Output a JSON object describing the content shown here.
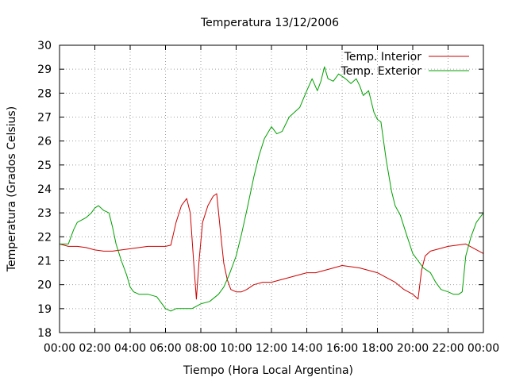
{
  "chart_data": {
    "type": "line",
    "title": "Temperatura 13/12/2006",
    "xlabel": "Tiempo (Hora Local Argentina)",
    "ylabel": "Temperatura (Grados Celsius)",
    "xlim": [
      0,
      24
    ],
    "ylim": [
      18,
      30
    ],
    "x_tick_labels": [
      "00:00",
      "02:00",
      "04:00",
      "06:00",
      "08:00",
      "10:00",
      "12:00",
      "14:00",
      "16:00",
      "18:00",
      "20:00",
      "22:00",
      "00:00"
    ],
    "y_tick_labels": [
      "18",
      "19",
      "20",
      "21",
      "22",
      "23",
      "24",
      "25",
      "26",
      "27",
      "28",
      "29",
      "30"
    ],
    "grid": true,
    "legend_position": "top-right",
    "series": [
      {
        "name": "Temp. Interior",
        "color": "#cc0000",
        "x": [
          0,
          0.5,
          1,
          1.5,
          2,
          2.5,
          3,
          3.5,
          4,
          4.5,
          5,
          5.5,
          6,
          6.3,
          6.6,
          6.9,
          7.2,
          7.4,
          7.6,
          7.75,
          7.9,
          8.1,
          8.4,
          8.7,
          8.9,
          9.1,
          9.3,
          9.5,
          9.7,
          10,
          10.3,
          10.6,
          11,
          11.5,
          12,
          12.5,
          13,
          13.5,
          14,
          14.5,
          15,
          15.5,
          16,
          16.5,
          17,
          17.5,
          18,
          18.5,
          19,
          19.5,
          20,
          20.3,
          20.5,
          20.7,
          21,
          21.5,
          22,
          22.5,
          23,
          23.5,
          24
        ],
        "y": [
          21.7,
          21.6,
          21.6,
          21.55,
          21.45,
          21.4,
          21.4,
          21.45,
          21.5,
          21.55,
          21.6,
          21.6,
          21.6,
          21.65,
          22.6,
          23.3,
          23.6,
          23.0,
          20.9,
          19.4,
          21.0,
          22.6,
          23.3,
          23.7,
          23.8,
          22.3,
          20.9,
          20.2,
          19.8,
          19.7,
          19.7,
          19.8,
          20.0,
          20.1,
          20.1,
          20.2,
          20.3,
          20.4,
          20.5,
          20.5,
          20.6,
          20.7,
          20.8,
          20.75,
          20.7,
          20.6,
          20.5,
          20.3,
          20.1,
          19.8,
          19.6,
          19.4,
          20.6,
          21.2,
          21.4,
          21.5,
          21.6,
          21.65,
          21.7,
          21.5,
          21.3
        ]
      },
      {
        "name": "Temp. Exterior",
        "color": "#00a000",
        "x": [
          0,
          0.5,
          0.8,
          1,
          1.5,
          1.8,
          2,
          2.2,
          2.5,
          2.8,
          3,
          3.2,
          3.5,
          3.8,
          4,
          4.2,
          4.5,
          5,
          5.5,
          5.8,
          6,
          6.3,
          6.6,
          7,
          7.5,
          8,
          8.5,
          9,
          9.3,
          9.6,
          10,
          10.3,
          10.6,
          11,
          11.3,
          11.6,
          12,
          12.3,
          12.6,
          13,
          13.3,
          13.6,
          14,
          14.3,
          14.6,
          14.8,
          15,
          15.2,
          15.5,
          15.8,
          16,
          16.2,
          16.5,
          16.8,
          17,
          17.2,
          17.5,
          17.8,
          18,
          18.2,
          18.5,
          18.8,
          19,
          19.3,
          19.6,
          20,
          20.3,
          20.6,
          21,
          21.3,
          21.6,
          22,
          22.3,
          22.6,
          22.8,
          23,
          23.3,
          23.6,
          24
        ],
        "y": [
          21.7,
          21.7,
          22.3,
          22.6,
          22.8,
          23.0,
          23.2,
          23.3,
          23.1,
          23.0,
          22.4,
          21.7,
          21.0,
          20.4,
          19.9,
          19.7,
          19.6,
          19.6,
          19.5,
          19.2,
          19.0,
          18.9,
          19.0,
          19.0,
          19.0,
          19.2,
          19.3,
          19.6,
          19.9,
          20.4,
          21.2,
          22.1,
          23.1,
          24.5,
          25.4,
          26.1,
          26.6,
          26.3,
          26.4,
          27.0,
          27.2,
          27.4,
          28.1,
          28.6,
          28.1,
          28.5,
          29.1,
          28.6,
          28.5,
          28.8,
          28.7,
          28.6,
          28.4,
          28.6,
          28.3,
          27.9,
          28.1,
          27.2,
          26.9,
          26.8,
          25.2,
          23.9,
          23.3,
          22.9,
          22.2,
          21.3,
          21.0,
          20.7,
          20.5,
          20.1,
          19.8,
          19.7,
          19.6,
          19.6,
          19.7,
          21.2,
          22.0,
          22.6,
          23.0
        ]
      }
    ]
  }
}
